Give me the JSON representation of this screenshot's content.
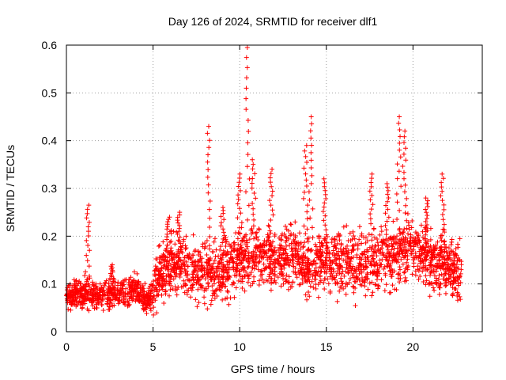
{
  "chart_data": {
    "type": "scatter",
    "title": "Day 126 of 2024, SRMTID for receiver dlf1",
    "xlabel": "GPS time / hours",
    "ylabel": "SRMTID / TECUs",
    "xlim": [
      0,
      24
    ],
    "ylim": [
      0,
      0.6
    ],
    "x_ticks": [
      0,
      5,
      10,
      15,
      20
    ],
    "x_tick_labels": [
      "0",
      "5",
      "10",
      "15",
      "20"
    ],
    "y_ticks": [
      0,
      0.1,
      0.2,
      0.3,
      0.4,
      0.5,
      0.6
    ],
    "y_tick_labels": [
      "0",
      "0.1",
      "0.2",
      "0.3",
      "0.4",
      "0.5",
      "0.6"
    ],
    "grid": true,
    "marker": "+",
    "series": [
      {
        "name": "dlf1",
        "color": "#ff0000",
        "baseline": {
          "x": [
            0,
            1,
            2,
            3,
            4,
            4.8,
            5.2,
            6,
            7,
            8,
            9,
            10,
            11,
            12,
            13,
            14,
            15,
            16,
            17,
            18,
            19,
            20,
            21,
            22,
            22.8
          ],
          "y": [
            0.075,
            0.08,
            0.075,
            0.08,
            0.09,
            0.06,
            0.11,
            0.14,
            0.13,
            0.12,
            0.13,
            0.15,
            0.16,
            0.15,
            0.16,
            0.14,
            0.15,
            0.14,
            0.14,
            0.15,
            0.16,
            0.18,
            0.15,
            0.14,
            0.12
          ]
        },
        "spikes": [
          {
            "x": 1.25,
            "peak": 0.265
          },
          {
            "x": 2.6,
            "peak": 0.14
          },
          {
            "x": 5.9,
            "peak": 0.24
          },
          {
            "x": 6.5,
            "peak": 0.25
          },
          {
            "x": 8.2,
            "peak": 0.43
          },
          {
            "x": 9.0,
            "peak": 0.26
          },
          {
            "x": 10.0,
            "peak": 0.33
          },
          {
            "x": 10.45,
            "peak": 0.595
          },
          {
            "x": 10.8,
            "peak": 0.36
          },
          {
            "x": 11.8,
            "peak": 0.34
          },
          {
            "x": 13.8,
            "peak": 0.39
          },
          {
            "x": 14.1,
            "peak": 0.45
          },
          {
            "x": 14.9,
            "peak": 0.32
          },
          {
            "x": 17.6,
            "peak": 0.33
          },
          {
            "x": 18.5,
            "peak": 0.31
          },
          {
            "x": 19.2,
            "peak": 0.45
          },
          {
            "x": 19.5,
            "peak": 0.42
          },
          {
            "x": 20.8,
            "peak": 0.28
          },
          {
            "x": 21.7,
            "peak": 0.33
          }
        ]
      }
    ]
  }
}
